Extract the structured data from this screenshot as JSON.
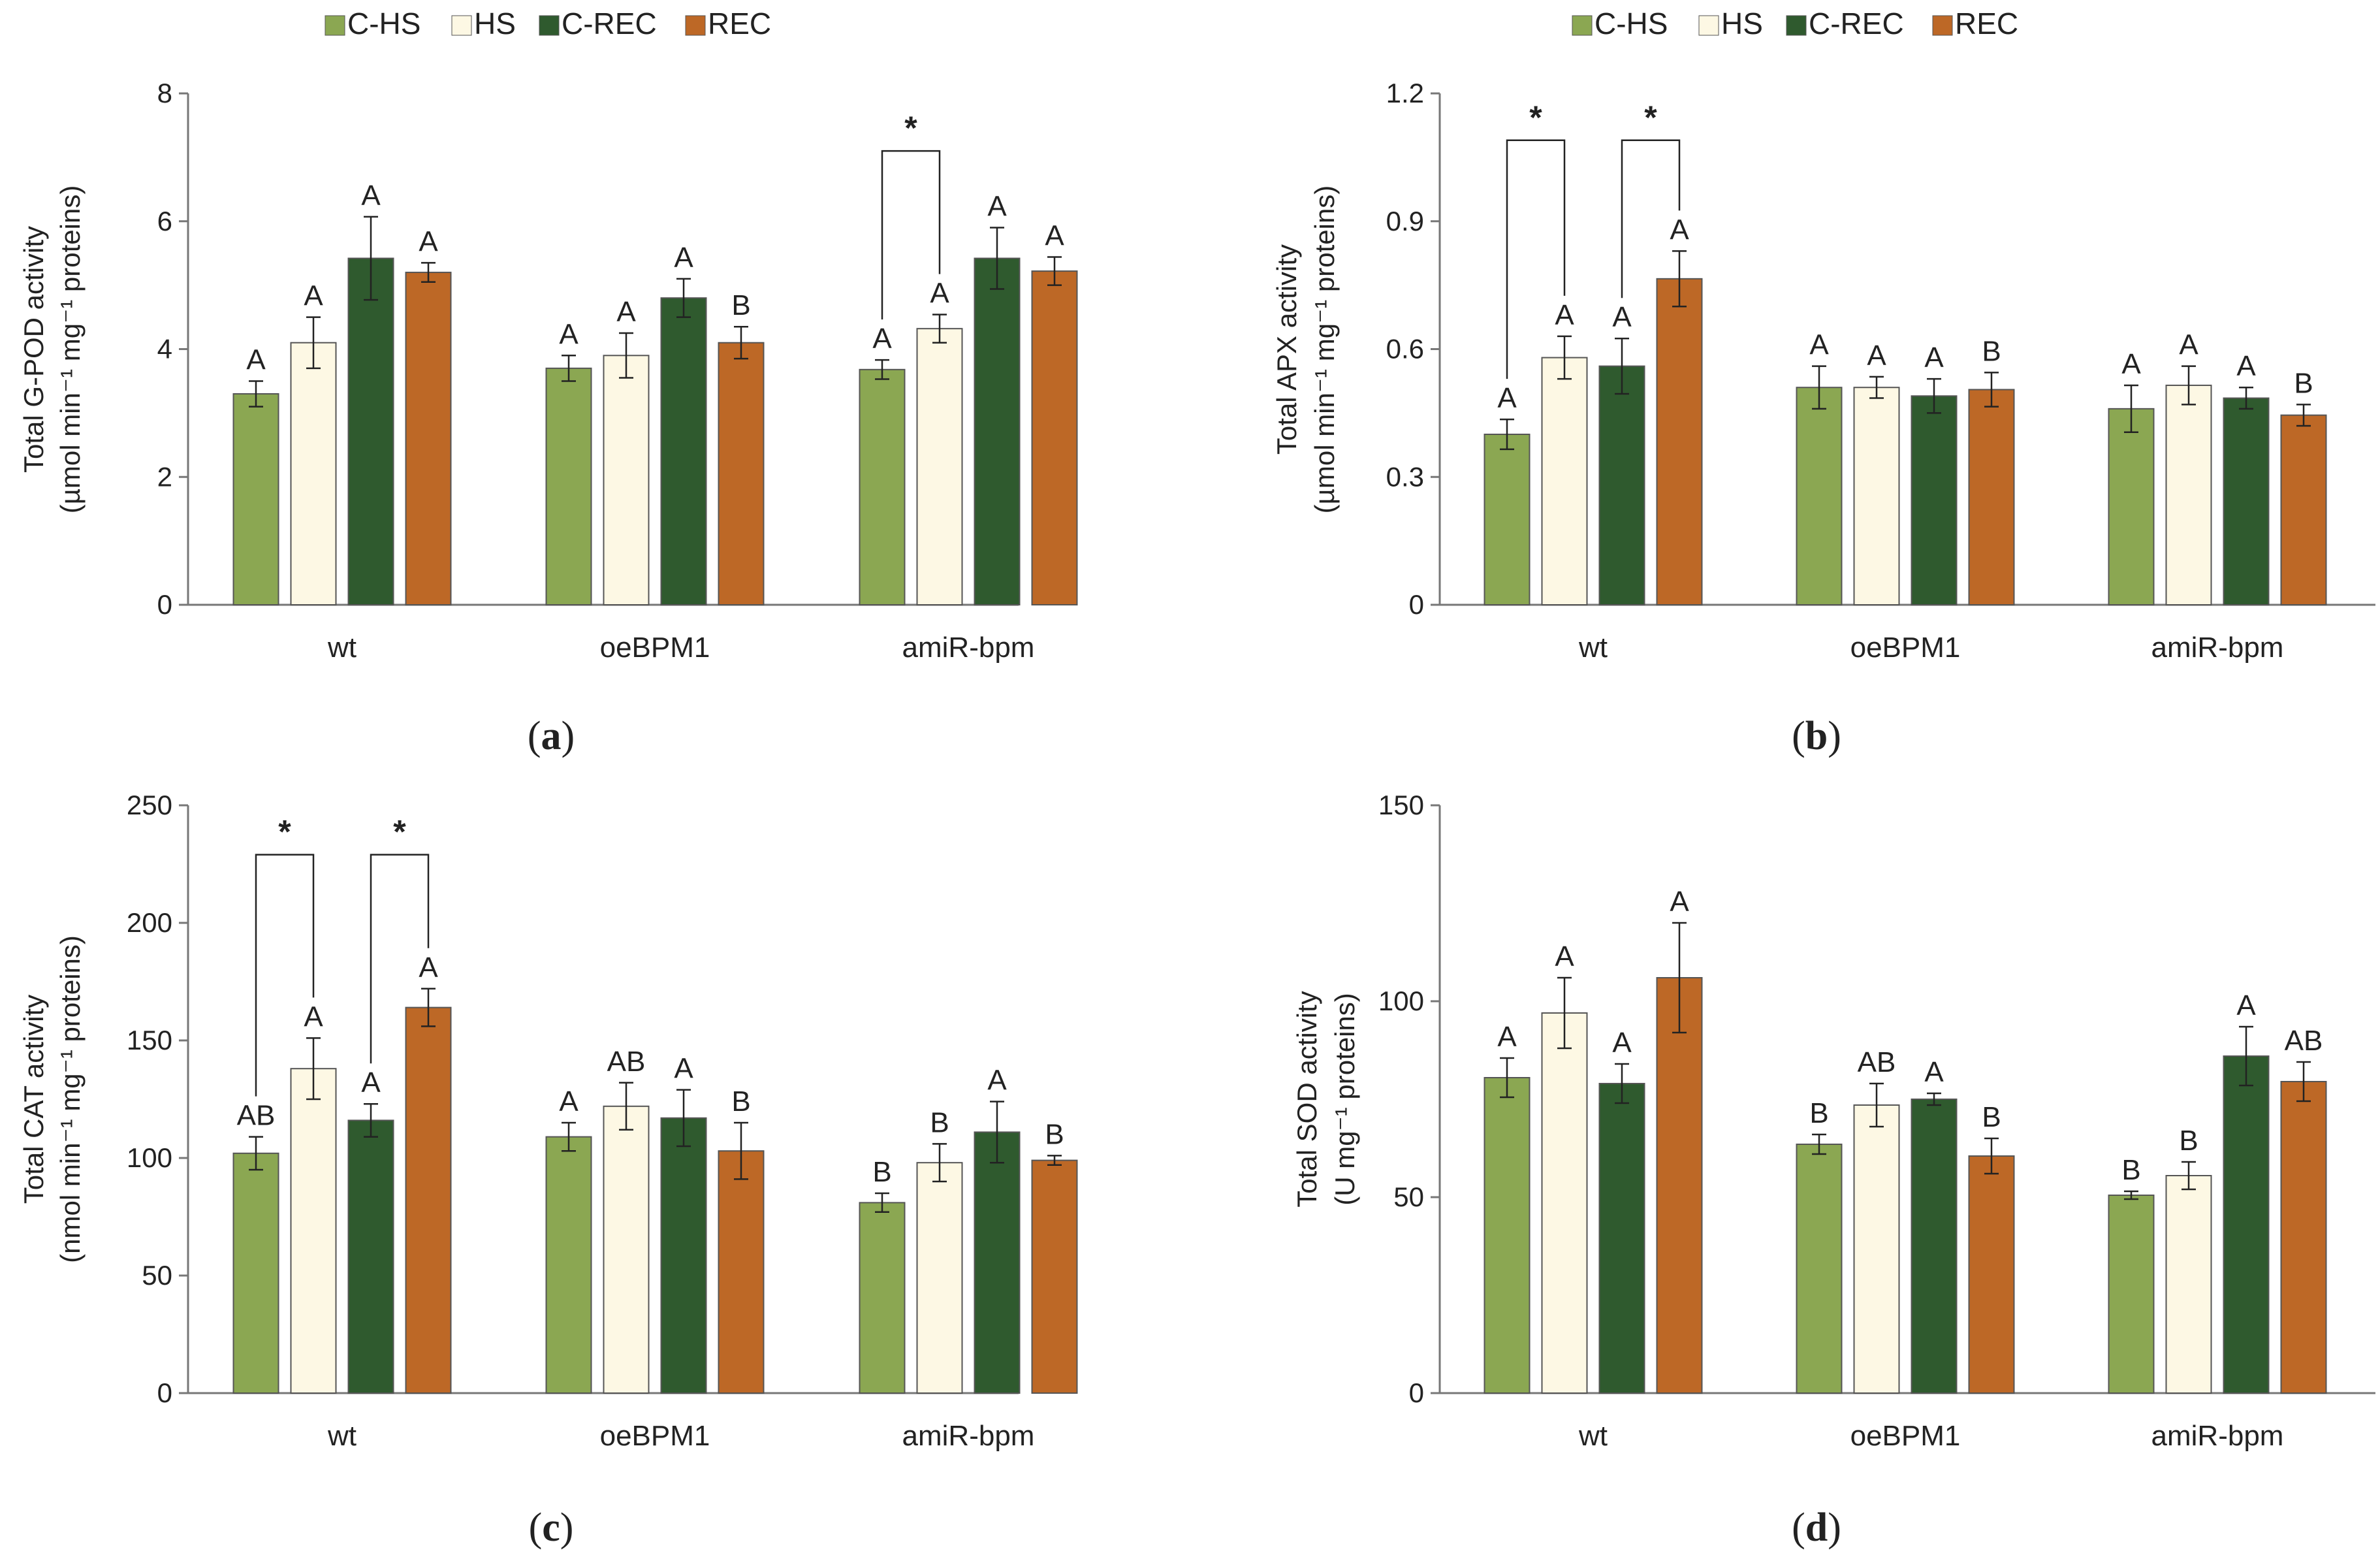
{
  "legend": [
    {
      "name": "C-HS",
      "color": "#8ba752"
    },
    {
      "name": "HS",
      "color": "#fdf8e4"
    },
    {
      "name": "C-REC",
      "color": "#2f5a2e"
    },
    {
      "name": "REC",
      "color": "#bd6826"
    }
  ],
  "chart_data": [
    {
      "type": "bar",
      "panel": "a",
      "panel_label": {
        "open": "(",
        "letter": "a",
        "close": ")"
      },
      "categories": [
        "wt",
        "oeBPM1",
        "amiR-bpm"
      ],
      "ylabel_lines": [
        "Total G-POD activity",
        "(µmol min⁻¹ mg⁻¹ proteins)"
      ],
      "ylim": [
        0,
        8
      ],
      "yticks": [
        "0",
        "2",
        "4",
        "6",
        "8"
      ],
      "ytick_values": [
        0,
        2,
        4,
        6,
        8
      ],
      "series": [
        {
          "name": "C-HS",
          "values": [
            3.3,
            3.7,
            3.68
          ],
          "errors": [
            0.2,
            0.2,
            0.15
          ],
          "letters": [
            "A",
            "A",
            "A"
          ]
        },
        {
          "name": "HS",
          "values": [
            4.1,
            3.9,
            4.32
          ],
          "errors": [
            0.4,
            0.35,
            0.22
          ],
          "letters": [
            "A",
            "A",
            "A"
          ]
        },
        {
          "name": "C-REC",
          "values": [
            5.42,
            4.8,
            5.42
          ],
          "errors": [
            0.65,
            0.3,
            0.48
          ],
          "letters": [
            "A",
            "A",
            "A"
          ]
        },
        {
          "name": "REC",
          "values": [
            5.2,
            4.1,
            5.22
          ],
          "errors": [
            0.15,
            0.25,
            0.22
          ],
          "letters": [
            "A",
            "B",
            "A"
          ]
        }
      ],
      "brackets": [
        {
          "group": 2,
          "from": 0,
          "to": 1,
          "label": "*",
          "top": 7.1
        }
      ]
    },
    {
      "type": "bar",
      "panel": "b",
      "panel_label": {
        "open": "(",
        "letter": "b",
        "close": ")"
      },
      "categories": [
        "wt",
        "oeBPM1",
        "amiR-bpm"
      ],
      "ylabel_lines": [
        "Total APX activity",
        "(µmol min⁻¹ mg⁻¹ proteins)"
      ],
      "ylim": [
        0,
        1.2
      ],
      "yticks": [
        "0",
        "0.3",
        "0.6",
        "0.9",
        "1.2"
      ],
      "ytick_values": [
        0,
        0.3,
        0.6,
        0.9,
        1.2
      ],
      "series": [
        {
          "name": "C-HS",
          "values": [
            0.4,
            0.51,
            0.46
          ],
          "errors": [
            0.035,
            0.05,
            0.055
          ],
          "letters": [
            "A",
            "A",
            "A"
          ]
        },
        {
          "name": "HS",
          "values": [
            0.58,
            0.51,
            0.515
          ],
          "errors": [
            0.05,
            0.025,
            0.045
          ],
          "letters": [
            "A",
            "A",
            "A"
          ]
        },
        {
          "name": "C-REC",
          "values": [
            0.56,
            0.49,
            0.485
          ],
          "errors": [
            0.065,
            0.04,
            0.025
          ],
          "letters": [
            "A",
            "A",
            "A"
          ]
        },
        {
          "name": "REC",
          "values": [
            0.765,
            0.505,
            0.445
          ],
          "errors": [
            0.065,
            0.04,
            0.025
          ],
          "letters": [
            "A",
            "B",
            "B"
          ]
        }
      ],
      "brackets": [
        {
          "group": 0,
          "from": 0,
          "to": 1,
          "label": "*",
          "top": 1.09
        },
        {
          "group": 0,
          "from": 2,
          "to": 3,
          "label": "*",
          "top": 1.09
        }
      ]
    },
    {
      "type": "bar",
      "panel": "c",
      "panel_label": {
        "open": "(",
        "letter": "c",
        "close": ")"
      },
      "categories": [
        "wt",
        "oeBPM1",
        "amiR-bpm"
      ],
      "ylabel_lines": [
        "Total CAT activity",
        "(nmol min⁻¹ mg⁻¹ proteins)"
      ],
      "ylim": [
        0,
        250
      ],
      "yticks": [
        "0",
        "50",
        "100",
        "150",
        "200",
        "250"
      ],
      "ytick_values": [
        0,
        50,
        100,
        150,
        200,
        250
      ],
      "series": [
        {
          "name": "C-HS",
          "values": [
            102,
            109,
            81
          ],
          "errors": [
            7,
            6,
            4
          ],
          "letters": [
            "AB",
            "A",
            "B"
          ]
        },
        {
          "name": "HS",
          "values": [
            138,
            122,
            98
          ],
          "errors": [
            13,
            10,
            8
          ],
          "letters": [
            "A",
            "AB",
            "B"
          ]
        },
        {
          "name": "C-REC",
          "values": [
            116,
            117,
            111
          ],
          "errors": [
            7,
            12,
            13
          ],
          "letters": [
            "A",
            "A",
            "A"
          ]
        },
        {
          "name": "REC",
          "values": [
            164,
            103,
            99
          ],
          "errors": [
            8,
            12,
            2
          ],
          "letters": [
            "A",
            "B",
            "B"
          ]
        }
      ],
      "brackets": [
        {
          "group": 0,
          "from": 0,
          "to": 1,
          "label": "*",
          "top": 229
        },
        {
          "group": 0,
          "from": 2,
          "to": 3,
          "label": "*",
          "top": 229
        }
      ]
    },
    {
      "type": "bar",
      "panel": "d",
      "panel_label": {
        "open": "(",
        "letter": "d",
        "close": ")"
      },
      "categories": [
        "wt",
        "oeBPM1",
        "amiR-bpm"
      ],
      "ylabel_lines": [
        "Total SOD activity",
        "(U mg⁻¹ proteins)"
      ],
      "ylim": [
        0,
        150
      ],
      "yticks": [
        "0",
        "50",
        "100",
        "150"
      ],
      "ytick_values": [
        0,
        50,
        100,
        150
      ],
      "series": [
        {
          "name": "C-HS",
          "values": [
            80.5,
            63.5,
            50.5
          ],
          "errors": [
            5,
            2.5,
            1
          ],
          "letters": [
            "A",
            "B",
            "B"
          ]
        },
        {
          "name": "HS",
          "values": [
            97,
            73.5,
            55.5
          ],
          "errors": [
            9,
            5.5,
            3.5
          ],
          "letters": [
            "A",
            "AB",
            "B"
          ]
        },
        {
          "name": "C-REC",
          "values": [
            79,
            75,
            86
          ],
          "errors": [
            5,
            1.5,
            7.5
          ],
          "letters": [
            "A",
            "A",
            "A"
          ]
        },
        {
          "name": "REC",
          "values": [
            106,
            60.5,
            79.5
          ],
          "errors": [
            14,
            4.5,
            5
          ],
          "letters": [
            "A",
            "B",
            "AB"
          ]
        }
      ],
      "brackets": []
    }
  ]
}
